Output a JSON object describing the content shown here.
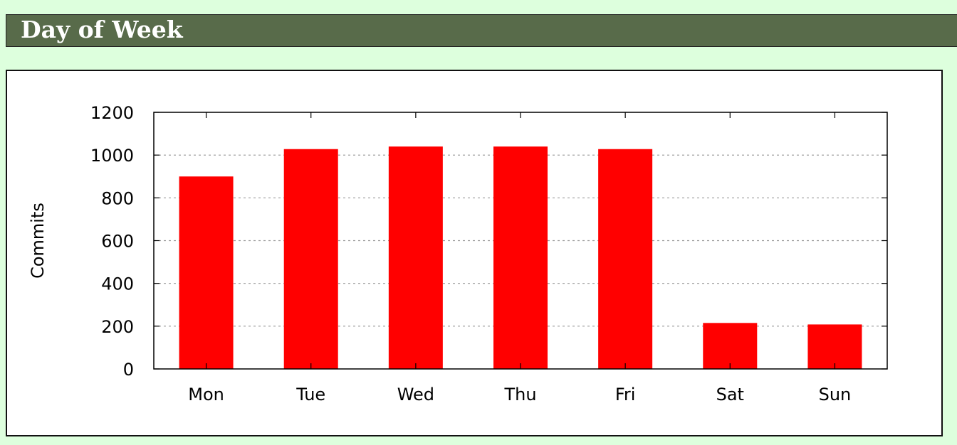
{
  "header": {
    "title": "Day of Week"
  },
  "chart_data": {
    "type": "bar",
    "title": "",
    "xlabel": "",
    "ylabel": "Commits",
    "categories": [
      "Mon",
      "Tue",
      "Wed",
      "Thu",
      "Fri",
      "Sat",
      "Sun"
    ],
    "values": [
      900,
      1028,
      1040,
      1040,
      1028,
      215,
      208
    ],
    "ylim": [
      0,
      1200
    ],
    "yticks": [
      0,
      200,
      400,
      600,
      800,
      1000,
      1200
    ],
    "grid": true,
    "bar_color": "#ff0000",
    "grid_color": "#999999"
  }
}
